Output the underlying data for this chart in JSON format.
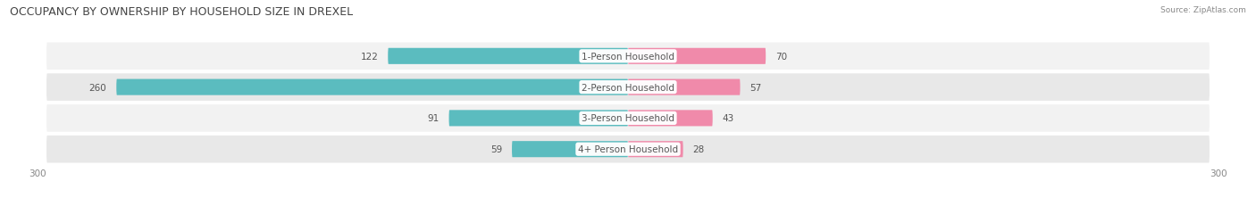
{
  "title": "OCCUPANCY BY OWNERSHIP BY HOUSEHOLD SIZE IN DREXEL",
  "source": "Source: ZipAtlas.com",
  "categories": [
    "1-Person Household",
    "2-Person Household",
    "3-Person Household",
    "4+ Person Household"
  ],
  "owner_values": [
    122,
    260,
    91,
    59
  ],
  "renter_values": [
    70,
    57,
    43,
    28
  ],
  "owner_color": "#5bbcbf",
  "renter_color": "#f08aaa",
  "axis_max": 300,
  "bar_height": 0.52,
  "title_fontsize": 9,
  "label_fontsize": 7.5,
  "tick_fontsize": 7.5,
  "center_label_color": "#555555",
  "value_label_color": "#555555",
  "row_bg_light": "#f2f2f2",
  "row_bg_dark": "#e8e8e8"
}
